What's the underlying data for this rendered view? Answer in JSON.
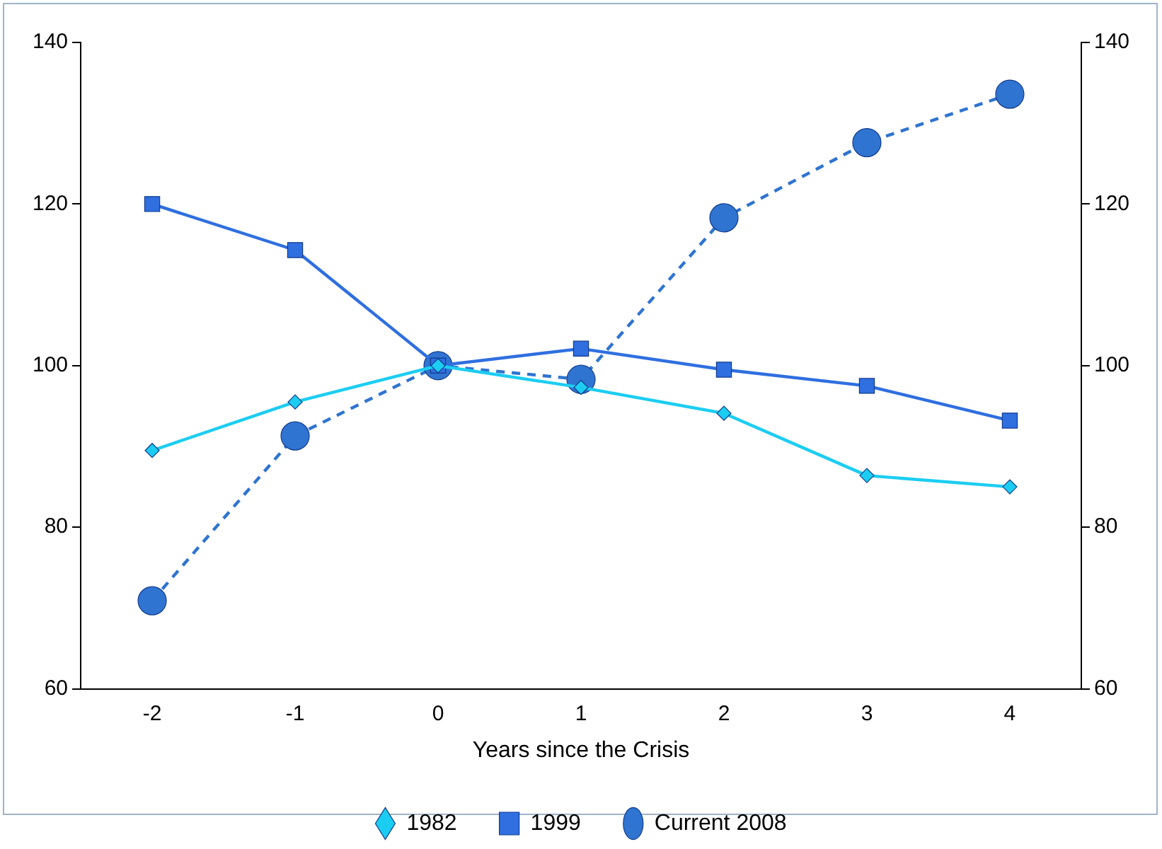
{
  "chart_data": {
    "type": "line",
    "xlabel": "Years since the Crisis",
    "categories": [
      "-2",
      "-1",
      "0",
      "1",
      "2",
      "3",
      "4"
    ],
    "series": [
      {
        "name": "1982",
        "color": "#1ccdf2",
        "marker": "diamond",
        "line_style": "solid",
        "values": [
          89.5,
          95.5,
          100,
          97.3,
          94.1,
          86.4,
          85.0
        ]
      },
      {
        "name": "1999",
        "color": "#2f6fe0",
        "marker": "square",
        "line_style": "solid",
        "values": [
          120,
          114.3,
          100,
          102.1,
          99.5,
          97.5,
          93.2
        ]
      },
      {
        "name": "Current 2008",
        "color": "#2f74d0",
        "marker": "circle",
        "line_style": "dashed",
        "values": [
          70.9,
          91.3,
          100,
          98.3,
          118.3,
          127.6,
          133.6
        ]
      }
    ],
    "ylim": [
      60,
      140
    ],
    "yticks": [
      60,
      80,
      100,
      120,
      140
    ],
    "y2lim": [
      60,
      140
    ],
    "y2ticks": [
      60,
      80,
      100,
      120,
      140
    ],
    "grid": false,
    "legend": "bottom"
  }
}
